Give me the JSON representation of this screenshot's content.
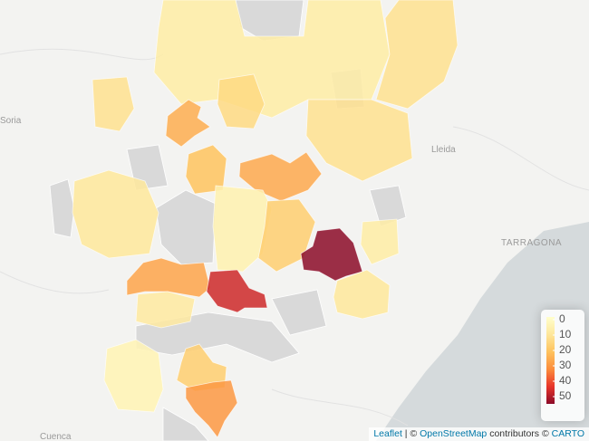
{
  "places": [
    "Soria",
    "Lleida",
    "TARRAGONA",
    "Cuenca"
  ],
  "legend": {
    "ticks": [
      0,
      10,
      20,
      30,
      40,
      50
    ],
    "colors": [
      "#ffffcc",
      "#fee79b",
      "#fec35e",
      "#fc8d3c",
      "#e8352a",
      "#8b0a28"
    ]
  },
  "regions": [
    8,
    12,
    12,
    14,
    24,
    20,
    25,
    10,
    17,
    50,
    43,
    26,
    9,
    10,
    5,
    17,
    28,
    12,
    8,
    6
  ],
  "attribution": {
    "leaflet": "Leaflet",
    "separator": "|",
    "copy": "©",
    "osm": "OpenStreetMap",
    "contributors": "contributors ©",
    "carto": "CARTO"
  }
}
